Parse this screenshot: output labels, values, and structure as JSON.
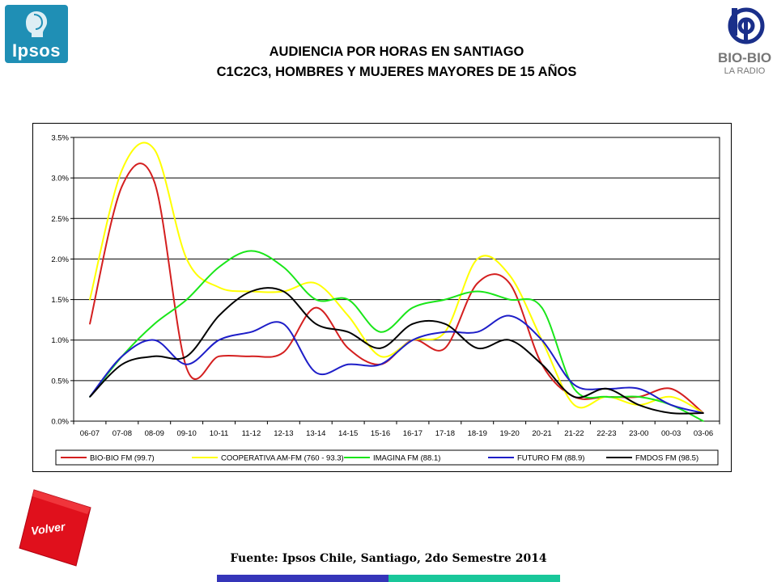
{
  "header": {
    "title_line1": "AUDIENCIA POR HORAS EN SANTIAGO",
    "title_line2": "C1C2C3, HOMBRES Y MUJERES MAYORES DE 15 AÑOS"
  },
  "logos": {
    "left": "Ipsos",
    "right_brand": "BIO-BIO",
    "right_sub": "LA RADIO"
  },
  "buttons": {
    "volver": "Volver"
  },
  "footer": {
    "source": "Fuente: Ipsos Chile, Santiago, 2do Semestre 2014"
  },
  "colors": {
    "ipsos_blue": "#1f8fb5",
    "volver_red": "#e0101c",
    "bar_blue": "#3535b9",
    "bar_green": "#19c79a"
  },
  "chart_data": {
    "type": "line",
    "title": "",
    "xlabel": "",
    "ylabel": "",
    "ylim": [
      0,
      3.5
    ],
    "yticks": [
      "0.0%",
      "0.5%",
      "1.0%",
      "1.5%",
      "2.0%",
      "2.5%",
      "3.0%",
      "3.5%"
    ],
    "ytick_values": [
      0,
      0.5,
      1.0,
      1.5,
      2.0,
      2.5,
      3.0,
      3.5
    ],
    "grid": "horizontal",
    "legend_position": "bottom",
    "categories": [
      "06-07",
      "07-08",
      "08-09",
      "09-10",
      "10-11",
      "11-12",
      "12-13",
      "13-14",
      "14-15",
      "15-16",
      "16-17",
      "17-18",
      "18-19",
      "19-20",
      "20-21",
      "21-22",
      "22-23",
      "23-00",
      "00-03",
      "03-06"
    ],
    "series": [
      {
        "name": "BIO-BIO FM (99.7)",
        "color": "#d41f1f",
        "values": [
          1.2,
          2.9,
          2.95,
          0.65,
          0.8,
          0.8,
          0.85,
          1.4,
          0.9,
          0.7,
          1.0,
          0.9,
          1.7,
          1.7,
          0.7,
          0.3,
          0.3,
          0.3,
          0.4,
          0.1
        ]
      },
      {
        "name": "COOPERATIVA AM-FM (760 - 93.3)",
        "color": "#ffff00",
        "values": [
          1.5,
          3.1,
          3.35,
          2.0,
          1.65,
          1.6,
          1.6,
          1.7,
          1.3,
          0.8,
          1.0,
          1.1,
          2.0,
          1.8,
          1.0,
          0.2,
          0.3,
          0.2,
          0.3,
          0.1
        ]
      },
      {
        "name": "IMAGINA FM (88.1)",
        "color": "#19e619",
        "values": [
          0.3,
          0.8,
          1.2,
          1.5,
          1.9,
          2.1,
          1.9,
          1.5,
          1.5,
          1.1,
          1.4,
          1.5,
          1.6,
          1.5,
          1.4,
          0.4,
          0.3,
          0.3,
          0.2,
          0.0
        ]
      },
      {
        "name": "FUTURO FM (88.9)",
        "color": "#1e1ec8",
        "values": [
          0.3,
          0.8,
          1.0,
          0.7,
          1.0,
          1.1,
          1.2,
          0.6,
          0.7,
          0.7,
          1.0,
          1.1,
          1.1,
          1.3,
          1.0,
          0.45,
          0.4,
          0.4,
          0.2,
          0.1
        ]
      },
      {
        "name": "FMDOS FM (98.5)",
        "color": "#000000",
        "values": [
          0.3,
          0.7,
          0.8,
          0.8,
          1.3,
          1.6,
          1.6,
          1.2,
          1.1,
          0.9,
          1.2,
          1.2,
          0.9,
          1.0,
          0.7,
          0.3,
          0.4,
          0.2,
          0.1,
          0.1
        ]
      }
    ]
  }
}
